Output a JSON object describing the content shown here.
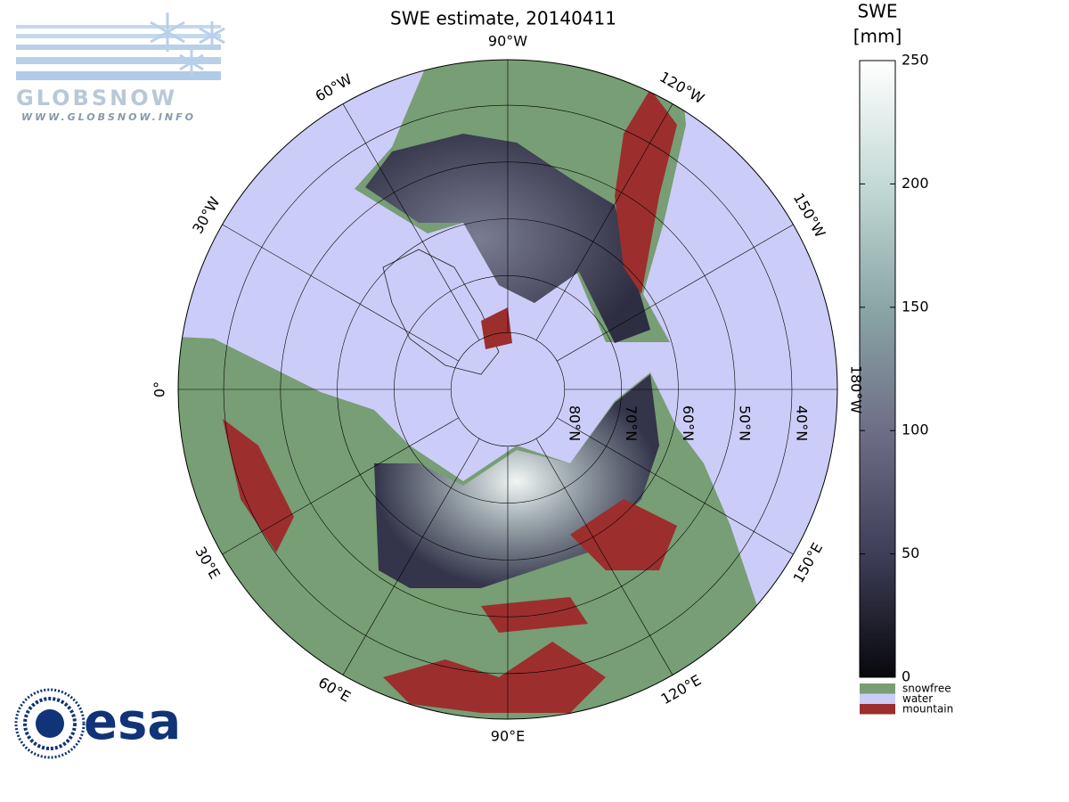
{
  "logo": {
    "name": "GLOBSNOW",
    "url": "WWW.GLOBSNOW.INFO"
  },
  "agency": "esa",
  "map": {
    "title": "SWE estimate, 20140411",
    "lat_range": [
      32,
      90
    ],
    "meridians": [
      {
        "value": 0,
        "label": "0°"
      },
      {
        "value": -30,
        "label": "30°W"
      },
      {
        "value": -60,
        "label": "60°W"
      },
      {
        "value": -90,
        "label": "90°W"
      },
      {
        "value": -120,
        "label": "120°W"
      },
      {
        "value": -150,
        "label": "150°W"
      },
      {
        "value": 180,
        "label": "180°W"
      },
      {
        "value": 150,
        "label": "150°E"
      },
      {
        "value": 120,
        "label": "120°E"
      },
      {
        "value": 90,
        "label": "90°E"
      },
      {
        "value": 60,
        "label": "60°E"
      },
      {
        "value": 30,
        "label": "30°E"
      }
    ],
    "parallels": [
      {
        "value": 80,
        "label": "80°N"
      },
      {
        "value": 70,
        "label": "70°N"
      },
      {
        "value": 60,
        "label": "60°N"
      },
      {
        "value": 50,
        "label": "50°N"
      },
      {
        "value": 40,
        "label": "40°N"
      }
    ]
  },
  "colorbar": {
    "title": [
      "SWE",
      "[mm]"
    ],
    "range": [
      0,
      250
    ],
    "ticks": [
      0,
      50,
      100,
      150,
      200,
      250
    ],
    "colors": [
      "#08080c",
      "#3e3e58",
      "#6e6e86",
      "#8aa6a6",
      "#c4dad6",
      "#ffffff"
    ],
    "classes": [
      {
        "name": "snowfree",
        "color": "#779e74"
      },
      {
        "name": "water",
        "color": "#ccccf8"
      },
      {
        "name": "mountain",
        "color": "#9c2e2e"
      }
    ]
  }
}
